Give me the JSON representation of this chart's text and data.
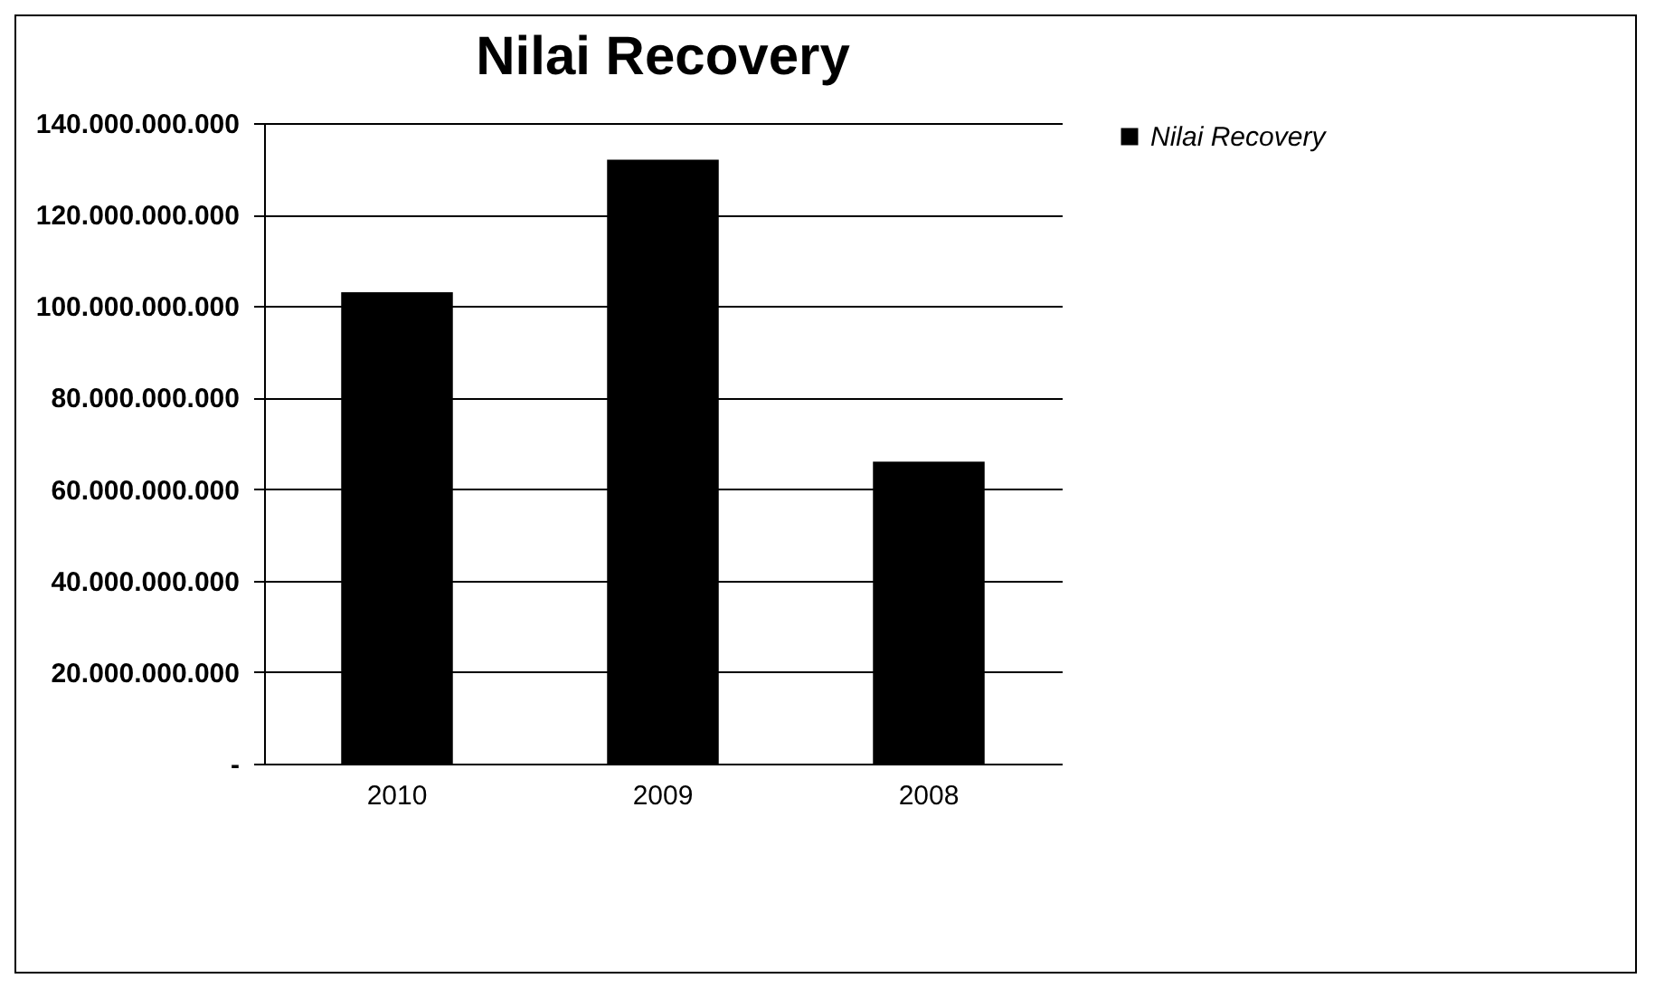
{
  "chart_data": {
    "type": "bar",
    "title": "Nilai Recovery",
    "categories": [
      "2010",
      "2009",
      "2008"
    ],
    "series": [
      {
        "name": "Nilai Recovery",
        "color": "#000000",
        "values": [
          103000000000,
          132000000000,
          66000000000
        ]
      }
    ],
    "ylim": [
      0,
      140000000000
    ],
    "yticks": [
      {
        "value": 0,
        "label": "-"
      },
      {
        "value": 20000000000,
        "label": "20.000.000.000"
      },
      {
        "value": 40000000000,
        "label": "40.000.000.000"
      },
      {
        "value": 60000000000,
        "label": "60.000.000.000"
      },
      {
        "value": 80000000000,
        "label": "80.000.000.000"
      },
      {
        "value": 100000000000,
        "label": "100.000.000.000"
      },
      {
        "value": 120000000000,
        "label": "120.000.000.000"
      },
      {
        "value": 140000000000,
        "label": "140.000.000.000"
      }
    ],
    "grid": "y",
    "legend": "right"
  }
}
